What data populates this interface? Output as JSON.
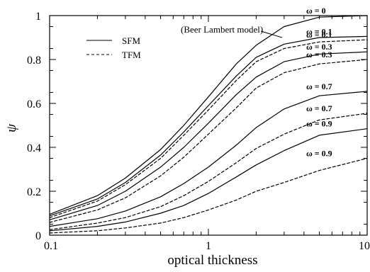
{
  "chart_data": {
    "type": "line",
    "title": "",
    "xlabel": "optical thickness",
    "ylabel": "ψ",
    "xscale": "log",
    "xlim": [
      0.1,
      10
    ],
    "ylim": [
      0,
      1
    ],
    "grid": false,
    "x_ticks": [
      0.1,
      1,
      10
    ],
    "x_tick_labels": [
      "0.1",
      "1",
      "10"
    ],
    "y_ticks": [
      0,
      0.2,
      0.4,
      0.6,
      0.8,
      1
    ],
    "y_tick_labels": [
      "0",
      "0.2",
      "0.4",
      "0.6",
      "0.8",
      "1"
    ],
    "legend": {
      "placement": "top-left",
      "entries": [
        {
          "label": "SFM",
          "style": "solid"
        },
        {
          "label": "TFM",
          "style": "dashed"
        }
      ]
    },
    "annotations": [
      {
        "text": "(Beer Lambert model)",
        "points_to": "ω = 0 curve",
        "at_x": 3.5
      }
    ],
    "x": [
      0.1,
      0.2,
      0.3,
      0.5,
      0.7,
      1,
      1.5,
      2,
      3,
      5,
      10
    ],
    "series": [
      {
        "label": "ω = 0",
        "style": "solid",
        "values": [
          0.095,
          0.18,
          0.26,
          0.39,
          0.5,
          0.63,
          0.78,
          0.865,
          0.95,
          0.993,
          1.0
        ]
      },
      {
        "label": "ω = 0.1",
        "style": "solid",
        "values": [
          0.088,
          0.165,
          0.24,
          0.365,
          0.47,
          0.59,
          0.725,
          0.81,
          0.87,
          0.9,
          0.905
        ]
      },
      {
        "label": "ω = 0.1",
        "style": "dashed",
        "values": [
          0.08,
          0.155,
          0.23,
          0.35,
          0.455,
          0.57,
          0.705,
          0.79,
          0.85,
          0.88,
          0.89
        ]
      },
      {
        "label": "ω = 0.3",
        "style": "solid",
        "values": [
          0.07,
          0.135,
          0.2,
          0.31,
          0.4,
          0.51,
          0.64,
          0.72,
          0.79,
          0.825,
          0.835
        ]
      },
      {
        "label": "ω = 0.3",
        "style": "dashed",
        "values": [
          0.058,
          0.115,
          0.17,
          0.27,
          0.355,
          0.46,
          0.58,
          0.67,
          0.74,
          0.78,
          0.8
        ]
      },
      {
        "label": "ω = 0.7",
        "style": "solid",
        "values": [
          0.04,
          0.075,
          0.11,
          0.175,
          0.235,
          0.31,
          0.41,
          0.49,
          0.575,
          0.635,
          0.655
        ]
      },
      {
        "label": "ω = 0.7",
        "style": "dashed",
        "values": [
          0.025,
          0.055,
          0.08,
          0.13,
          0.18,
          0.245,
          0.33,
          0.395,
          0.46,
          0.525,
          0.555
        ]
      },
      {
        "label": "ω = 0.9",
        "style": "solid",
        "values": [
          0.02,
          0.04,
          0.06,
          0.1,
          0.135,
          0.19,
          0.265,
          0.32,
          0.385,
          0.455,
          0.485
        ]
      },
      {
        "label": "ω = 0.9",
        "style": "dashed",
        "values": [
          0.01,
          0.02,
          0.033,
          0.055,
          0.08,
          0.115,
          0.16,
          0.2,
          0.24,
          0.295,
          0.35
        ]
      }
    ]
  }
}
